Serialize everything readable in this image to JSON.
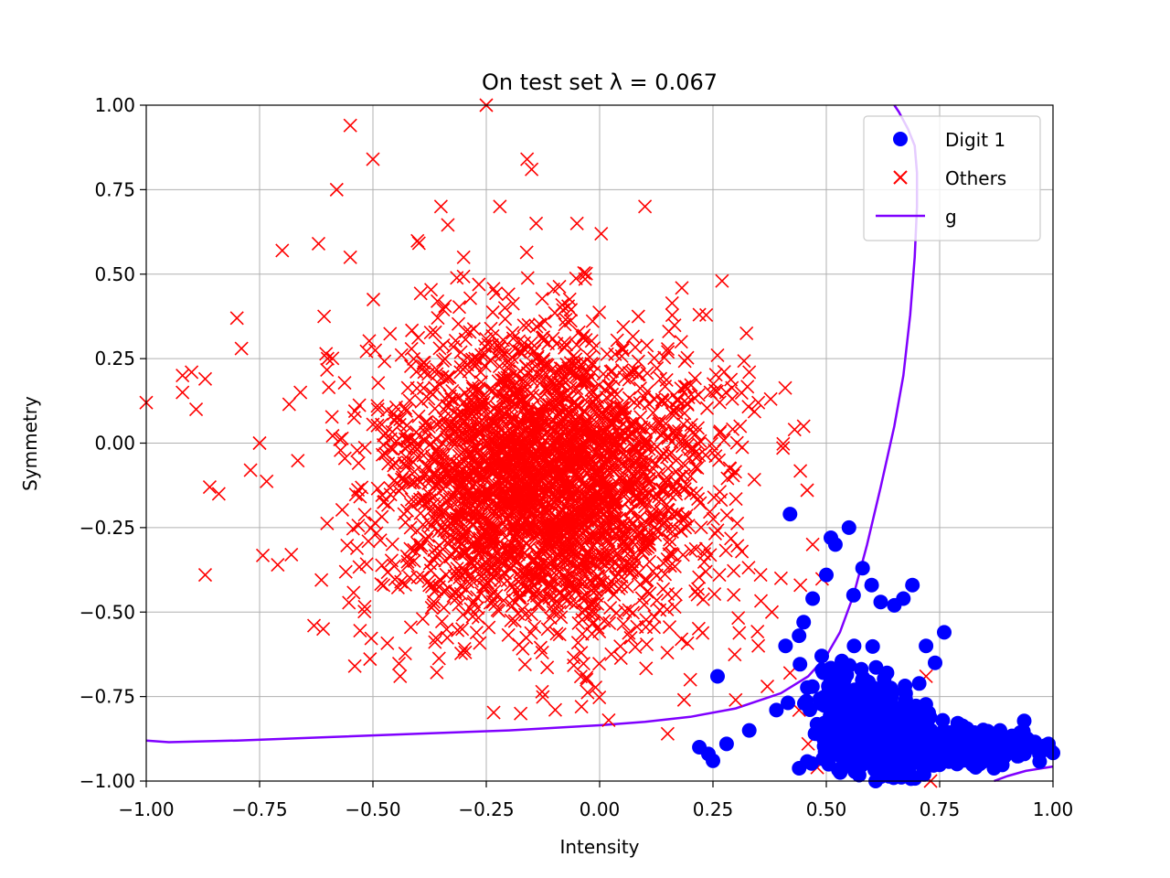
{
  "chart_data": {
    "type": "scatter",
    "title": "On test set λ = 0.067",
    "xlabel": "Intensity",
    "ylabel": "Symmetry",
    "xlim": [
      -1.0,
      1.0
    ],
    "ylim": [
      -1.0,
      1.0
    ],
    "x_ticks": [
      "−1.00",
      "−0.75",
      "−0.50",
      "−0.25",
      "0.00",
      "0.25",
      "0.50",
      "0.75",
      "1.00"
    ],
    "y_ticks": [
      "1.00",
      "0.75",
      "0.50",
      "0.25",
      "0.00",
      "−0.25",
      "−0.50",
      "−0.75",
      "−1.00"
    ],
    "grid": true,
    "legend_position": "top-right",
    "colors": {
      "digit1": "#0000ff",
      "others": "#ff0000",
      "g": "#7f00ff"
    },
    "series": [
      {
        "name": "Digit 1",
        "marker": "circle",
        "clusters": [
          {
            "cx": 0.62,
            "cy": -0.86,
            "sx": 0.06,
            "sy": 0.06,
            "n": 500
          },
          {
            "cx": 0.82,
            "cy": -0.9,
            "sx": 0.07,
            "sy": 0.025,
            "n": 350
          },
          {
            "cx": 0.55,
            "cy": -0.78,
            "sx": 0.05,
            "sy": 0.08,
            "n": 120
          }
        ],
        "values": [
          [
            0.55,
            -0.25
          ],
          [
            0.51,
            -0.28
          ],
          [
            0.52,
            -0.3
          ],
          [
            0.42,
            -0.21
          ],
          [
            0.69,
            -0.42
          ],
          [
            0.58,
            -0.37
          ],
          [
            0.5,
            -0.39
          ],
          [
            0.6,
            -0.42
          ],
          [
            0.62,
            -0.47
          ],
          [
            0.65,
            -0.48
          ],
          [
            0.67,
            -0.46
          ],
          [
            0.76,
            -0.56
          ],
          [
            0.72,
            -0.6
          ],
          [
            0.74,
            -0.65
          ],
          [
            0.56,
            -0.45
          ],
          [
            0.47,
            -0.46
          ],
          [
            0.45,
            -0.53
          ],
          [
            0.44,
            -0.57
          ],
          [
            0.41,
            -0.6
          ],
          [
            0.22,
            -0.9
          ],
          [
            0.24,
            -0.92
          ],
          [
            0.25,
            -0.94
          ],
          [
            0.28,
            -0.89
          ],
          [
            0.33,
            -0.85
          ],
          [
            0.39,
            -0.79
          ],
          [
            0.99,
            -0.89
          ],
          [
            0.97,
            -0.92
          ],
          [
            0.95,
            -0.9
          ],
          [
            0.93,
            -0.88
          ],
          [
            0.9,
            -0.9
          ],
          [
            0.87,
            -0.89
          ],
          [
            0.86,
            -0.91
          ],
          [
            0.26,
            -0.69
          ],
          [
            0.49,
            -0.63
          ],
          [
            0.54,
            -0.7
          ]
        ]
      },
      {
        "name": "Others",
        "marker": "x",
        "clusters": [
          {
            "cx": -0.12,
            "cy": -0.12,
            "sx": 0.18,
            "sy": 0.22,
            "n": 2800
          }
        ],
        "values": [
          [
            -0.25,
            1.0
          ],
          [
            -0.55,
            0.94
          ],
          [
            -0.5,
            0.84
          ],
          [
            -0.58,
            0.75
          ],
          [
            -0.16,
            0.84
          ],
          [
            -0.15,
            0.81
          ],
          [
            -1.0,
            0.12
          ],
          [
            -0.92,
            0.2
          ],
          [
            -0.9,
            0.21
          ],
          [
            -0.89,
            0.1
          ],
          [
            -0.92,
            0.15
          ],
          [
            -0.87,
            0.19
          ],
          [
            -0.86,
            -0.13
          ],
          [
            -0.84,
            -0.15
          ],
          [
            -0.87,
            -0.39
          ],
          [
            -0.8,
            0.37
          ],
          [
            -0.79,
            0.28
          ],
          [
            -0.75,
            0.0
          ],
          [
            -0.77,
            -0.08
          ],
          [
            -0.7,
            0.57
          ],
          [
            -0.63,
            -0.54
          ],
          [
            -0.54,
            -0.66
          ],
          [
            -0.44,
            -0.69
          ],
          [
            0.15,
            -0.86
          ],
          [
            0.3,
            -0.76
          ],
          [
            0.33,
            0.21
          ],
          [
            0.43,
            0.04
          ],
          [
            0.45,
            0.05
          ],
          [
            0.27,
            0.48
          ],
          [
            0.73,
            -1.0
          ],
          [
            0.66,
            -0.84
          ],
          [
            0.72,
            -0.69
          ],
          [
            0.48,
            -0.96
          ],
          [
            0.62,
            -0.91
          ],
          [
            0.58,
            -0.8
          ],
          [
            0.52,
            -0.85
          ],
          [
            0.46,
            -0.89
          ],
          [
            0.44,
            -0.79
          ],
          [
            0.56,
            -0.94
          ],
          [
            0.42,
            -0.68
          ],
          [
            0.37,
            -0.72
          ],
          [
            0.35,
            -0.6
          ],
          [
            0.4,
            -0.4
          ],
          [
            0.38,
            -0.5
          ],
          [
            0.47,
            -0.3
          ],
          [
            0.2,
            -0.7
          ],
          [
            0.02,
            -0.82
          ],
          [
            -0.04,
            -0.78
          ],
          [
            -0.62,
            0.59
          ],
          [
            -0.6,
            0.25
          ],
          [
            -0.66,
            0.15
          ],
          [
            -0.68,
            -0.33
          ],
          [
            -0.71,
            -0.36
          ],
          [
            -0.55,
            0.55
          ],
          [
            0.1,
            0.7
          ],
          [
            -0.05,
            0.65
          ],
          [
            0.22,
            0.38
          ],
          [
            0.18,
            0.3
          ],
          [
            0.26,
            0.26
          ],
          [
            0.35,
            0.12
          ],
          [
            0.31,
            0.05
          ],
          [
            -0.35,
            0.7
          ],
          [
            -0.22,
            0.7
          ],
          [
            -0.14,
            0.65
          ],
          [
            -0.3,
            0.55
          ]
        ]
      },
      {
        "name": "g",
        "marker": "line",
        "curves": [
          [
            [
              -1.0,
              -0.88
            ],
            [
              -0.95,
              -0.885
            ],
            [
              -0.8,
              -0.88
            ],
            [
              -0.6,
              -0.87
            ],
            [
              -0.4,
              -0.86
            ],
            [
              -0.2,
              -0.85
            ],
            [
              0.0,
              -0.835
            ],
            [
              0.1,
              -0.825
            ],
            [
              0.2,
              -0.81
            ],
            [
              0.3,
              -0.785
            ],
            [
              0.4,
              -0.74
            ],
            [
              0.46,
              -0.69
            ],
            [
              0.5,
              -0.63
            ],
            [
              0.53,
              -0.56
            ],
            [
              0.56,
              -0.45
            ],
            [
              0.59,
              -0.3
            ],
            [
              0.62,
              -0.13
            ],
            [
              0.65,
              0.05
            ],
            [
              0.67,
              0.2
            ],
            [
              0.685,
              0.38
            ],
            [
              0.695,
              0.55
            ],
            [
              0.7,
              0.7
            ],
            [
              0.7,
              0.8
            ],
            [
              0.695,
              0.88
            ],
            [
              0.68,
              0.93
            ],
            [
              0.66,
              0.98
            ],
            [
              0.65,
              1.0
            ]
          ],
          [
            [
              0.87,
              -1.0
            ],
            [
              0.9,
              -0.985
            ],
            [
              0.94,
              -0.97
            ],
            [
              1.0,
              -0.957
            ]
          ]
        ]
      }
    ]
  }
}
